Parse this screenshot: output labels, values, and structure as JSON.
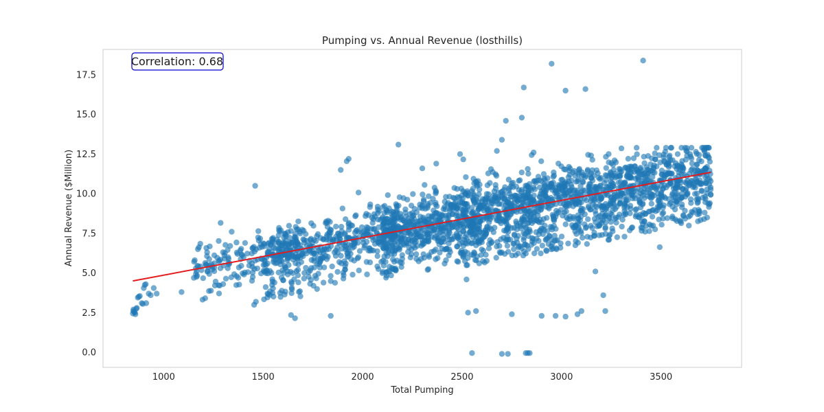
{
  "chart_data": {
    "type": "scatter",
    "title": "Pumping vs. Annual Revenue (losthills)",
    "xlabel": "Total Pumping",
    "ylabel": "Annual Revenue ($Million)",
    "xlim": [
      695,
      3905
    ],
    "ylim": [
      -0.95,
      19.1
    ],
    "x_ticks": [
      1000,
      1500,
      2000,
      2500,
      3000,
      3500
    ],
    "x_tick_labels": [
      "1000",
      "1500",
      "2000",
      "2500",
      "3000",
      "3500"
    ],
    "y_ticks": [
      0.0,
      2.5,
      5.0,
      7.5,
      10.0,
      12.5,
      15.0,
      17.5
    ],
    "y_tick_labels": [
      "0.0",
      "2.5",
      "5.0",
      "7.5",
      "10.0",
      "12.5",
      "15.0",
      "17.5"
    ],
    "grid": false,
    "annotation": "Correlation: 0.68",
    "correlation": 0.68,
    "colors": {
      "points": "#1f77b4",
      "fit_line": "#e41a1c",
      "annotation_border": "#0000cc",
      "frame": "#cccccc"
    },
    "fit_line": {
      "x": [
        845,
        3750
      ],
      "y": [
        4.5,
        11.35
      ]
    },
    "cluster_spec": [
      {
        "x_range": [
          845,
          3750
        ],
        "count": 2600,
        "note": "dense band around fit line"
      }
    ],
    "outliers": {
      "x": [
        1460,
        1930,
        1920,
        1890,
        2180,
        2300,
        2370,
        2490,
        2675,
        2700,
        2720,
        2810,
        2800,
        2950,
        3020,
        3120,
        3410,
        2550,
        2700,
        2730,
        2830,
        2840,
        2820,
        2750,
        2900,
        2970,
        3020,
        3080,
        3100,
        3210,
        3220,
        3170,
        2570,
        2530,
        1640,
        1660,
        1840
      ],
      "y": [
        10.5,
        12.2,
        12.05,
        11.5,
        13.1,
        11.6,
        11.9,
        12.5,
        12.7,
        13.4,
        14.6,
        16.7,
        14.8,
        18.2,
        16.5,
        16.6,
        18.4,
        -0.05,
        -0.1,
        -0.1,
        -0.05,
        -0.05,
        -0.05,
        2.4,
        2.3,
        2.3,
        2.25,
        2.4,
        2.6,
        3.6,
        2.6,
        5.1,
        2.6,
        2.5,
        2.35,
        2.15,
        2.3
      ]
    },
    "low_cluster": {
      "x": [
        845,
        848,
        852,
        858,
        862,
        870,
        880,
        895,
        900,
        905,
        912,
        925,
        935,
        950,
        965,
        1090,
        848,
        855,
        865,
        875,
        890,
        910
      ],
      "y": [
        2.45,
        2.7,
        2.55,
        2.4,
        2.75,
        3.45,
        3.55,
        3.05,
        4.05,
        4.25,
        3.1,
        3.7,
        3.6,
        4.05,
        3.7,
        3.8,
        2.6,
        2.5,
        2.8,
        3.5,
        3.1,
        4.3
      ]
    }
  }
}
